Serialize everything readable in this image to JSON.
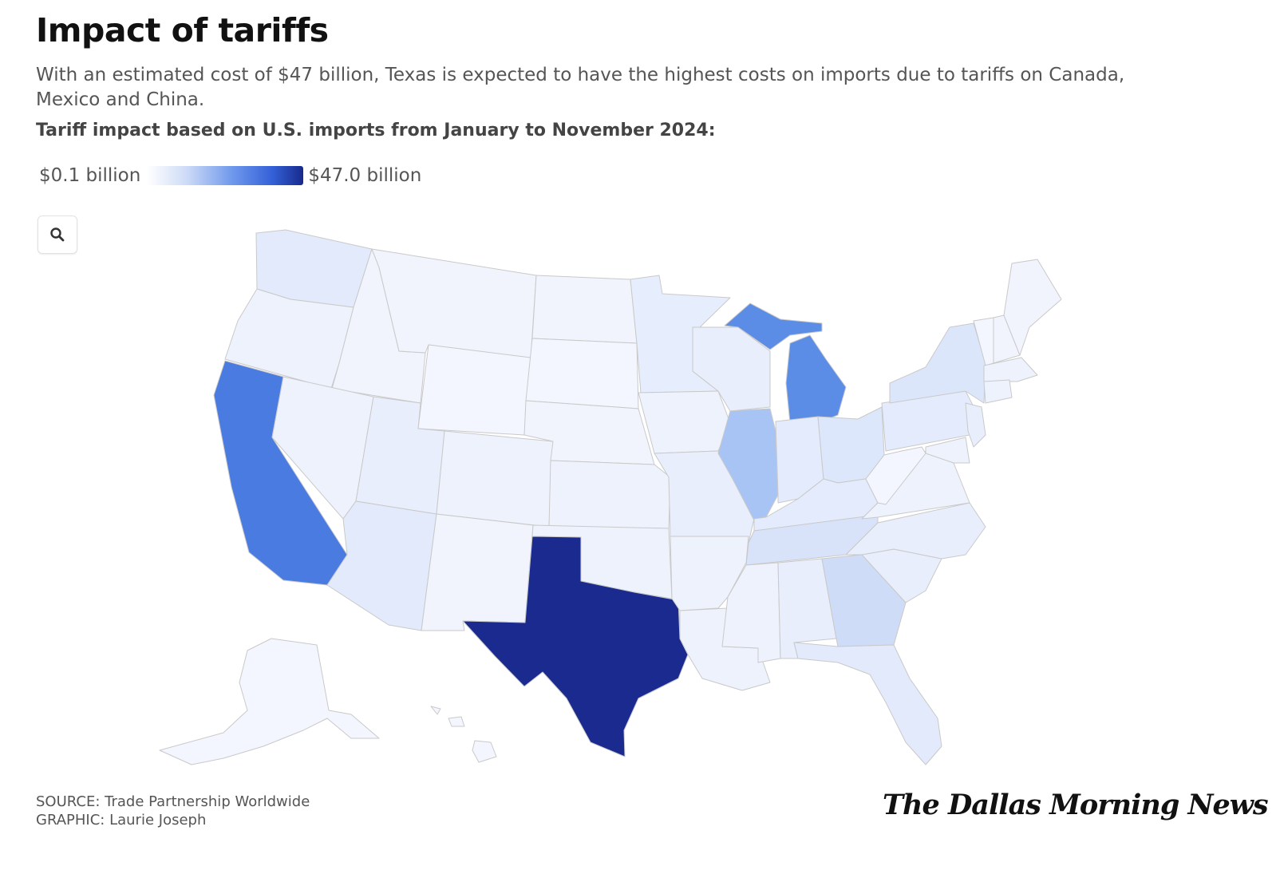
{
  "title": "Impact of tariffs",
  "subtitle": "With an estimated cost of $47 billion, Texas is expected to have the highest costs on imports due to tariffs on Canada, Mexico and China.",
  "lead": "Tariff impact based on U.S. imports from January to November 2024:",
  "legend": {
    "min_label": "$0.1 billion",
    "max_label": "$47.0 billion",
    "colors": [
      "#ffffff",
      "#cfdcf7",
      "#6e98ec",
      "#3561d8",
      "#172a8c"
    ]
  },
  "zoom_icon": "search-icon",
  "footer": {
    "source": "SOURCE: Trade Partnership Worldwide",
    "graphic": "GRAPHIC: Laurie Joseph"
  },
  "logo": "The Dallas Morning News",
  "colors": {
    "highest": "#1a2a8f",
    "high": "#4a7be0",
    "medium": "#5b8ce6",
    "mid_low": "#a8c4f5",
    "low": "#dde7fb",
    "lowest": "#f1f4fd"
  },
  "states": [
    {
      "name": "Texas",
      "color": "#1a2a8f"
    },
    {
      "name": "California",
      "color": "#4a7be0"
    },
    {
      "name": "Michigan",
      "color": "#5b8ce6"
    },
    {
      "name": "Illinois",
      "color": "#a8c4f5"
    },
    {
      "name": "Georgia",
      "color": "#cfdcf7"
    },
    {
      "name": "Tennessee",
      "color": "#d8e3fa"
    },
    {
      "name": "New York",
      "color": "#dce6fb"
    },
    {
      "name": "Ohio",
      "color": "#dde7fb"
    },
    {
      "name": "Washington",
      "color": "#e2eafb"
    },
    {
      "name": "Arizona",
      "color": "#e2eafb"
    },
    {
      "name": "Florida",
      "color": "#e2eafb"
    },
    {
      "name": "Indiana",
      "color": "#e4ebfc"
    },
    {
      "name": "Kentucky",
      "color": "#e4ebfc"
    },
    {
      "name": "Pennsylvania",
      "color": "#e4ebfc"
    },
    {
      "name": "Minnesota",
      "color": "#e6edfc"
    },
    {
      "name": "Wisconsin",
      "color": "#e8eefc"
    },
    {
      "name": "Missouri",
      "color": "#e8eefc"
    },
    {
      "name": "Alabama",
      "color": "#e8eefc"
    },
    {
      "name": "South Carolina",
      "color": "#e8eefc"
    },
    {
      "name": "North Carolina",
      "color": "#e8eefc"
    },
    {
      "name": "Utah",
      "color": "#e8eefc"
    },
    {
      "name": "New Jersey",
      "color": "#e8eefc"
    },
    {
      "name": "Oregon",
      "color": "#eef2fd"
    },
    {
      "name": "Nevada",
      "color": "#eef2fd"
    },
    {
      "name": "Colorado",
      "color": "#eef2fd"
    },
    {
      "name": "Iowa",
      "color": "#eef2fd"
    },
    {
      "name": "Kansas",
      "color": "#eef2fd"
    },
    {
      "name": "Oklahoma",
      "color": "#eef2fd"
    },
    {
      "name": "Louisiana",
      "color": "#eef2fd"
    },
    {
      "name": "Mississippi",
      "color": "#eef2fd"
    },
    {
      "name": "Arkansas",
      "color": "#eef2fd"
    },
    {
      "name": "Virginia",
      "color": "#eef2fd"
    },
    {
      "name": "Massachusetts",
      "color": "#eef2fd"
    },
    {
      "name": "Connecticut",
      "color": "#eef2fd"
    },
    {
      "name": "Maryland",
      "color": "#eef2fd"
    },
    {
      "name": "Idaho",
      "color": "#f1f4fd"
    },
    {
      "name": "Montana",
      "color": "#f1f4fd"
    },
    {
      "name": "Wyoming",
      "color": "#f3f6fe"
    },
    {
      "name": "New Mexico",
      "color": "#f1f4fd"
    },
    {
      "name": "North Dakota",
      "color": "#f1f4fd"
    },
    {
      "name": "South Dakota",
      "color": "#f3f6fe"
    },
    {
      "name": "Nebraska",
      "color": "#f1f4fd"
    },
    {
      "name": "West Virginia",
      "color": "#f3f6fe"
    },
    {
      "name": "Maine",
      "color": "#f1f4fd"
    },
    {
      "name": "Vermont",
      "color": "#f3f6fe"
    },
    {
      "name": "New Hampshire",
      "color": "#f1f4fd"
    },
    {
      "name": "Rhode Island",
      "color": "#f1f4fd"
    },
    {
      "name": "Delaware",
      "color": "#f1f4fd"
    },
    {
      "name": "Alaska",
      "color": "#f3f6fe"
    },
    {
      "name": "Hawaii",
      "color": "#f3f6fe"
    }
  ]
}
